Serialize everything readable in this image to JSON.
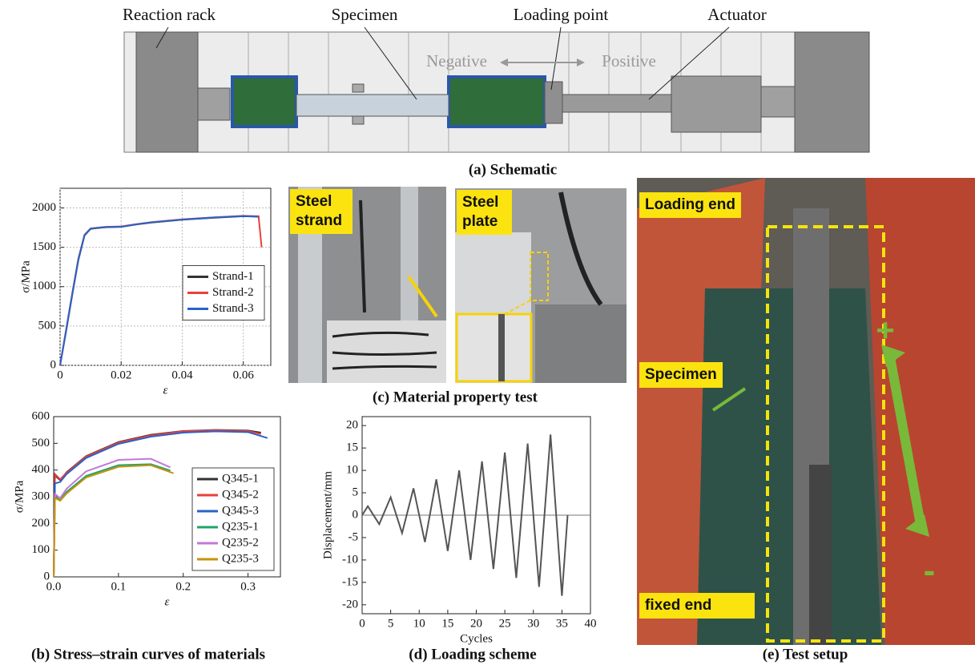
{
  "schematic": {
    "labels": [
      "Reaction rack",
      "Specimen",
      "Loading point",
      "Actuator"
    ],
    "negative": "Negative",
    "positive": "Positive",
    "caption": "(a) Schematic"
  },
  "captions": {
    "b": "(b) Stress–strain curves of materials",
    "c": "(c) Material property test",
    "d": "(d) Loading scheme",
    "e": "(e) Test setup"
  },
  "photo_c": {
    "left_label": "Steel strand",
    "right_label": "Steel plate"
  },
  "photo_e": {
    "loading_end": "Loading end",
    "specimen": "Specimen",
    "fixed_end": "fixed end",
    "plus": "+",
    "minus": "-"
  },
  "chart_data": [
    {
      "type": "line",
      "xlabel": "ε",
      "ylabel": "σ/MPa",
      "xlim": [
        0,
        0.069
      ],
      "ylim": [
        0,
        2250
      ],
      "xticks": [
        0,
        0.02,
        0.04,
        0.06
      ],
      "yticks": [
        0,
        500,
        1000,
        1500,
        2000
      ],
      "grid": true,
      "legend": "center right",
      "series": [
        {
          "name": "Strand-1",
          "color": "#333333",
          "x": [
            0,
            0.002,
            0.004,
            0.006,
            0.008,
            0.01,
            0.015,
            0.02,
            0.025,
            0.03,
            0.04,
            0.05,
            0.06,
            0.065
          ],
          "values": [
            0,
            440,
            900,
            1340,
            1650,
            1735,
            1755,
            1760,
            1790,
            1815,
            1850,
            1875,
            1895,
            1890
          ]
        },
        {
          "name": "Strand-2",
          "color": "#e8403a",
          "x": [
            0,
            0.002,
            0.004,
            0.006,
            0.008,
            0.01,
            0.015,
            0.02,
            0.025,
            0.03,
            0.04,
            0.05,
            0.06,
            0.065,
            0.066
          ],
          "values": [
            0,
            460,
            920,
            1360,
            1660,
            1740,
            1760,
            1765,
            1795,
            1820,
            1855,
            1880,
            1900,
            1895,
            1500
          ]
        },
        {
          "name": "Strand-3",
          "color": "#2a63c9",
          "x": [
            0,
            0.002,
            0.004,
            0.006,
            0.008,
            0.01,
            0.015,
            0.02,
            0.025,
            0.03,
            0.04,
            0.05,
            0.06,
            0.065
          ],
          "values": [
            0,
            450,
            910,
            1350,
            1655,
            1738,
            1758,
            1762,
            1792,
            1818,
            1852,
            1878,
            1898,
            1888
          ]
        }
      ]
    },
    {
      "type": "line",
      "xlabel": "ε",
      "ylabel": "σ/MPa",
      "xlim": [
        0,
        0.35
      ],
      "ylim": [
        0,
        600
      ],
      "xticks": [
        {
          "value": 0,
          "label": "0.0"
        },
        0.1,
        0.2,
        0.3
      ],
      "yticks": [
        0,
        100,
        200,
        300,
        400,
        500,
        600
      ],
      "grid": false,
      "legend": "lower right",
      "series": [
        {
          "name": "Q345-1",
          "color": "#333333",
          "x": [
            0,
            0.002,
            0.01,
            0.02,
            0.05,
            0.1,
            0.15,
            0.2,
            0.25,
            0.3,
            0.32
          ],
          "values": [
            0,
            380,
            362,
            392,
            452,
            505,
            532,
            546,
            550,
            548,
            540
          ]
        },
        {
          "name": "Q345-2",
          "color": "#e8403a",
          "x": [
            0,
            0.002,
            0.01,
            0.02,
            0.05,
            0.1,
            0.15,
            0.2,
            0.25,
            0.3,
            0.32
          ],
          "values": [
            0,
            385,
            365,
            390,
            450,
            503,
            530,
            545,
            549,
            546,
            535
          ]
        },
        {
          "name": "Q345-3",
          "color": "#2a63c9",
          "x": [
            0,
            0.002,
            0.01,
            0.02,
            0.05,
            0.1,
            0.15,
            0.2,
            0.25,
            0.3,
            0.33
          ],
          "values": [
            0,
            350,
            355,
            385,
            445,
            498,
            525,
            540,
            545,
            542,
            520
          ]
        },
        {
          "name": "Q235-1",
          "color": "#22a36a",
          "x": [
            0,
            0.002,
            0.01,
            0.02,
            0.05,
            0.1,
            0.15,
            0.18
          ],
          "values": [
            0,
            300,
            288,
            318,
            378,
            418,
            422,
            398
          ]
        },
        {
          "name": "Q235-2",
          "color": "#c07ad8",
          "x": [
            0,
            0.002,
            0.01,
            0.02,
            0.05,
            0.1,
            0.15,
            0.18
          ],
          "values": [
            0,
            310,
            295,
            330,
            395,
            438,
            442,
            410
          ]
        },
        {
          "name": "Q235-3",
          "color": "#c8930e",
          "x": [
            0,
            0.002,
            0.01,
            0.02,
            0.05,
            0.1,
            0.15,
            0.185
          ],
          "values": [
            0,
            295,
            285,
            312,
            372,
            412,
            418,
            388
          ]
        }
      ]
    },
    {
      "type": "line",
      "xlabel": "Cycles",
      "ylabel": "Displacement/mm",
      "xlim": [
        0,
        40
      ],
      "ylim": [
        -22,
        22
      ],
      "xticks": [
        0,
        5,
        10,
        15,
        20,
        25,
        30,
        35,
        40
      ],
      "yticks": [
        -20,
        -15,
        -10,
        -5,
        0,
        5,
        10,
        15,
        20
      ],
      "grid": false,
      "reference_line": 0,
      "series": [
        {
          "color": "#555555",
          "x": [
            0,
            1,
            3,
            5,
            7,
            9,
            11,
            13,
            15,
            17,
            19,
            21,
            23,
            25,
            27,
            29,
            31,
            33,
            35,
            36
          ],
          "values": [
            0,
            2,
            -2,
            4,
            -4,
            6,
            -6,
            8,
            -8,
            10,
            -10,
            12,
            -12,
            14,
            -14,
            16,
            -16,
            18,
            -18,
            0
          ]
        }
      ]
    }
  ]
}
